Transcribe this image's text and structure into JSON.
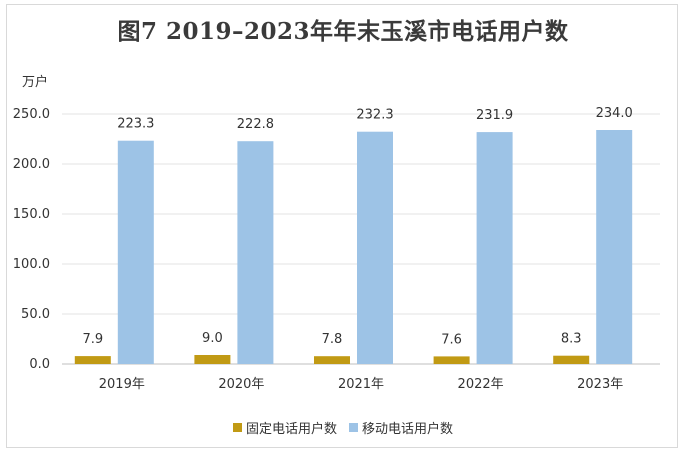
{
  "colors": {
    "fixed": "#C19A14",
    "mobile": "#9DC3E6",
    "grid": "#e3e3e3",
    "axis": "#bfbfbf"
  },
  "chart_data": {
    "type": "bar",
    "title": "图7    2019–2023年年末玉溪市电话用户数",
    "ylabel": "万户",
    "xlabel": "",
    "categories": [
      "2019年",
      "2020年",
      "2021年",
      "2022年",
      "2023年"
    ],
    "ylim": [
      0,
      250
    ],
    "yticks": [
      "0.0",
      "50.0",
      "100.0",
      "150.0",
      "200.0",
      "250.0"
    ],
    "grid": true,
    "legend_position": "bottom",
    "series": [
      {
        "name": "固定电话用户数",
        "values": [
          7.9,
          9.0,
          7.8,
          7.6,
          8.3
        ],
        "labels": [
          "7.9",
          "9.0",
          "7.8",
          "7.6",
          "8.3"
        ]
      },
      {
        "name": "移动电话用户数",
        "values": [
          223.3,
          222.8,
          232.3,
          231.9,
          234.0
        ],
        "labels": [
          "223.3",
          "222.8",
          "232.3",
          "231.9",
          "234.0"
        ]
      }
    ]
  }
}
